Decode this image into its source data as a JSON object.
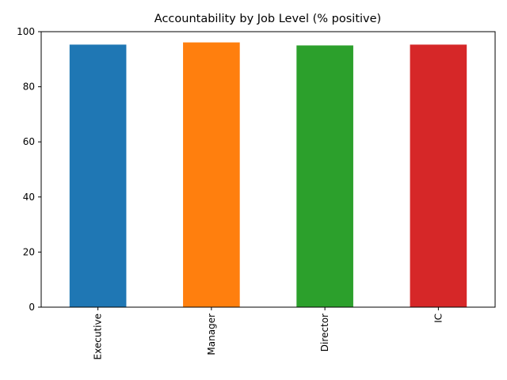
{
  "chart_data": {
    "type": "bar",
    "title": "Accountability by Job Level (% positive)",
    "xlabel": "",
    "ylabel": "",
    "categories": [
      "Executive",
      "Manager",
      "Director",
      "IC"
    ],
    "values": [
      95.3,
      96.1,
      95.0,
      95.3
    ],
    "colors": [
      "#1f77b4",
      "#ff7f0e",
      "#2ca02c",
      "#d62728"
    ],
    "ylim": [
      0,
      100
    ],
    "yticks": [
      0,
      20,
      40,
      60,
      80,
      100
    ],
    "grid": false,
    "legend": "none"
  }
}
